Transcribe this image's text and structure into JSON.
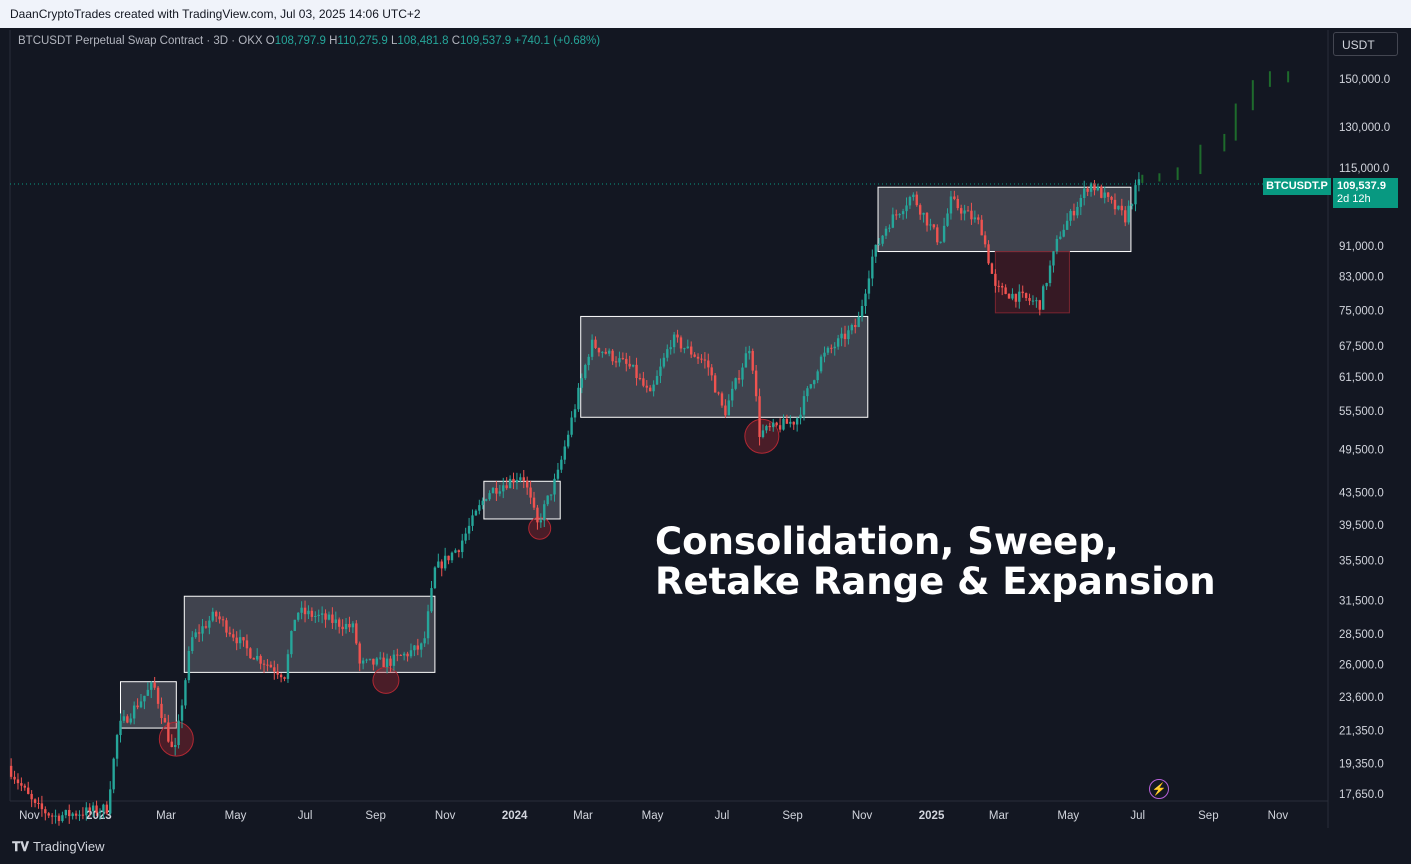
{
  "header": {
    "attribution": "DaanCryptoTrades created with TradingView.com, Jul 03, 2025 14:06 UTC+2"
  },
  "legend": {
    "symbol": "BTCUSDT Perpetual Swap Contract · 3D · OKX",
    "o_label": "O",
    "o_value": "108,797.9",
    "h_label": "H",
    "h_value": "110,275.9",
    "l_label": "L",
    "l_value": "108,481.8",
    "c_label": "C",
    "c_value": "109,537.9",
    "change": "+740.1 (+0.68%)"
  },
  "currency_button": "USDT",
  "last_price": {
    "symbol": "BTCUSDT.P",
    "value": "109,537.9",
    "countdown": "2d 12h"
  },
  "headline": {
    "line1": "Consolidation, Sweep,",
    "line2": "Retake Range & Expansion"
  },
  "footer": {
    "brand": "TradingView",
    "logo": "TV-logo"
  },
  "colors": {
    "up": "#26a69a",
    "down": "#ef5350",
    "projection": "#1e6b2c",
    "range_box": "#ffffff",
    "sweep": "#b22833"
  },
  "chart_data": {
    "type": "candlestick",
    "scale": "log",
    "y_ticks": [
      17650,
      19350,
      21350,
      23600,
      26000,
      28500,
      31500,
      35500,
      39500,
      43500,
      49500,
      55500,
      61500,
      67500,
      75000,
      83000,
      91000,
      115000,
      130000,
      150000
    ],
    "y_tick_labels": [
      "17,650.0",
      "19,350.0",
      "21,350.0",
      "23,600.0",
      "26,000.0",
      "28,500.0",
      "31,500.0",
      "35,500.0",
      "39,500.0",
      "43,500.0",
      "49,500.0",
      "55,500.0",
      "61,500.0",
      "67,500.0",
      "75,000.0",
      "83,000.0",
      "91,000.0",
      "115,000.0",
      "130,000.0",
      "150,000.0"
    ],
    "x_start": "2022-10-15",
    "x_end": "2025-12-15",
    "x_ticks": [
      {
        "date": "2022-11-01",
        "label": "Nov"
      },
      {
        "date": "2023-01-01",
        "label": "2023"
      },
      {
        "date": "2023-03-01",
        "label": "Mar"
      },
      {
        "date": "2023-05-01",
        "label": "May"
      },
      {
        "date": "2023-07-01",
        "label": "Jul"
      },
      {
        "date": "2023-09-01",
        "label": "Sep"
      },
      {
        "date": "2023-11-01",
        "label": "Nov"
      },
      {
        "date": "2024-01-01",
        "label": "2024"
      },
      {
        "date": "2024-03-01",
        "label": "Mar"
      },
      {
        "date": "2024-05-01",
        "label": "May"
      },
      {
        "date": "2024-07-01",
        "label": "Jul"
      },
      {
        "date": "2024-09-01",
        "label": "Sep"
      },
      {
        "date": "2024-11-01",
        "label": "Nov"
      },
      {
        "date": "2025-01-01",
        "label": "2025"
      },
      {
        "date": "2025-03-01",
        "label": "Mar"
      },
      {
        "date": "2025-05-01",
        "label": "May"
      },
      {
        "date": "2025-07-01",
        "label": "Jul"
      },
      {
        "date": "2025-09-01",
        "label": "Sep"
      },
      {
        "date": "2025-11-01",
        "label": "Nov"
      }
    ],
    "price_path": [
      [
        "2022-10-15",
        19200
      ],
      [
        "2022-11-08",
        17000
      ],
      [
        "2022-11-25",
        16500
      ],
      [
        "2023-01-10",
        16900
      ],
      [
        "2023-01-20",
        21500
      ],
      [
        "2023-02-20",
        24500
      ],
      [
        "2023-03-10",
        19700
      ],
      [
        "2023-03-25",
        28000
      ],
      [
        "2023-04-15",
        30200
      ],
      [
        "2023-05-15",
        27000
      ],
      [
        "2023-06-15",
        25200
      ],
      [
        "2023-06-25",
        30500
      ],
      [
        "2023-07-15",
        30000
      ],
      [
        "2023-08-15",
        29000
      ],
      [
        "2023-08-20",
        26000
      ],
      [
        "2023-09-15",
        26200
      ],
      [
        "2023-10-15",
        27500
      ],
      [
        "2023-10-25",
        34500
      ],
      [
        "2023-11-15",
        37000
      ],
      [
        "2023-12-10",
        43500
      ],
      [
        "2024-01-10",
        46000
      ],
      [
        "2024-01-23",
        39500
      ],
      [
        "2024-02-10",
        46000
      ],
      [
        "2024-03-10",
        68000
      ],
      [
        "2024-04-15",
        63000
      ],
      [
        "2024-05-01",
        58000
      ],
      [
        "2024-05-20",
        69000
      ],
      [
        "2024-06-20",
        64000
      ],
      [
        "2024-07-05",
        55000
      ],
      [
        "2024-07-28",
        68000
      ],
      [
        "2024-08-05",
        52000
      ],
      [
        "2024-09-06",
        54000
      ],
      [
        "2024-09-28",
        65000
      ],
      [
        "2024-10-30",
        72000
      ],
      [
        "2024-11-12",
        88000
      ],
      [
        "2024-11-25",
        97000
      ],
      [
        "2024-12-17",
        106000
      ],
      [
        "2025-01-10",
        92000
      ],
      [
        "2025-01-20",
        104000
      ],
      [
        "2025-02-15",
        97000
      ],
      [
        "2025-02-28",
        80000
      ],
      [
        "2025-04-08",
        76500
      ],
      [
        "2025-04-25",
        94000
      ],
      [
        "2025-05-22",
        110000
      ],
      [
        "2025-06-22",
        99000
      ],
      [
        "2025-07-03",
        109538
      ]
    ],
    "projection": [
      [
        "2025-07-05",
        111000
      ],
      [
        "2025-07-20",
        111500
      ],
      [
        "2025-08-05",
        112000
      ],
      [
        "2025-08-25",
        114000
      ],
      [
        "2025-09-15",
        122000
      ],
      [
        "2025-09-25",
        126000
      ],
      [
        "2025-10-10",
        138000
      ],
      [
        "2025-10-25",
        148000
      ],
      [
        "2025-11-10",
        152000
      ],
      [
        "2025-11-25",
        150000
      ]
    ],
    "ranges": [
      {
        "start": "2023-01-20",
        "end": "2023-03-10",
        "low": 21500,
        "high": 24700
      },
      {
        "start": "2023-03-17",
        "end": "2023-10-23",
        "low": 25400,
        "high": 31900
      },
      {
        "start": "2023-12-05",
        "end": "2024-02-10",
        "low": 40200,
        "high": 45000
      },
      {
        "start": "2024-02-28",
        "end": "2024-11-06",
        "low": 54500,
        "high": 73700
      },
      {
        "start": "2024-11-15",
        "end": "2025-06-25",
        "low": 89500,
        "high": 108500
      }
    ],
    "range_deviation": {
      "start": "2025-02-26",
      "end": "2025-05-02",
      "low": 74500,
      "high": 89500
    },
    "sweeps": [
      {
        "date": "2023-03-10",
        "price": 20800
      },
      {
        "date": "2023-09-10",
        "price": 24800
      },
      {
        "date": "2024-01-23",
        "price": 39100
      },
      {
        "date": "2024-08-05",
        "price": 51500
      }
    ],
    "last_price": 109537.9,
    "xlabel": "",
    "ylabel": ""
  }
}
